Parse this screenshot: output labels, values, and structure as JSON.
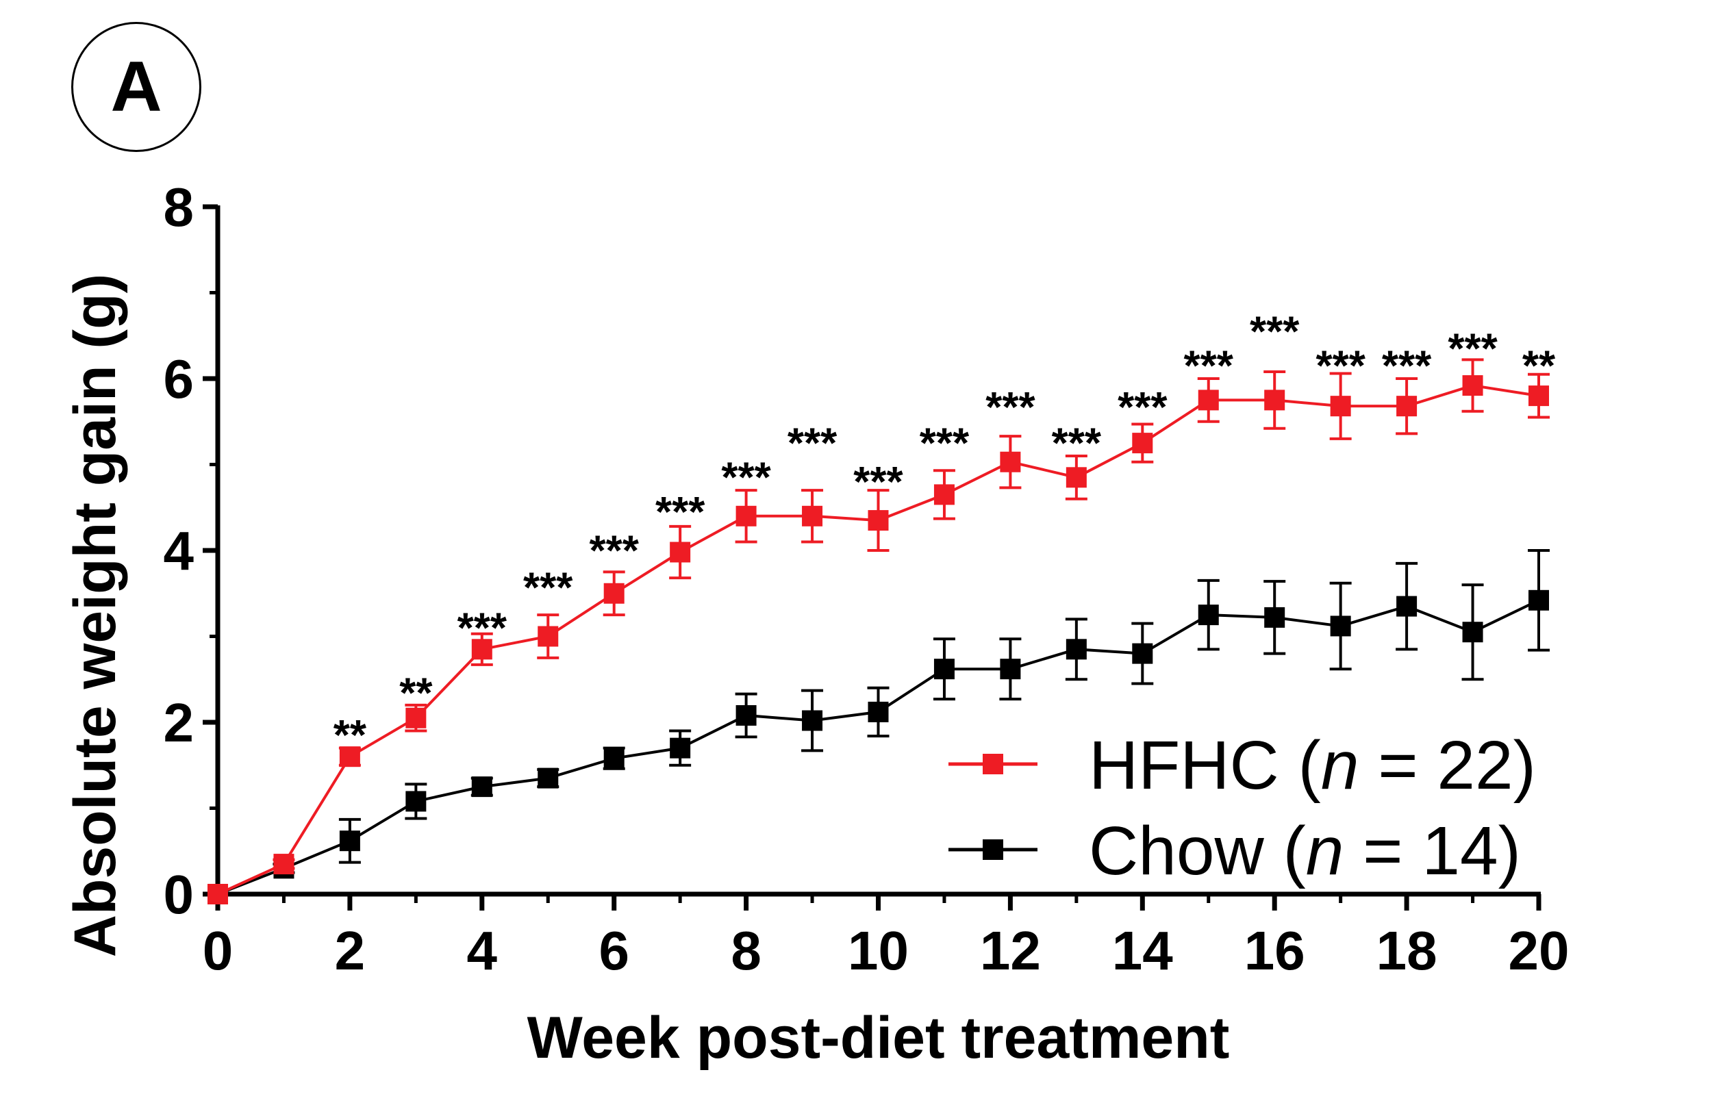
{
  "panel_label": "A",
  "chart_data": {
    "type": "line",
    "xlabel": "Week post-diet treatment",
    "ylabel": "Absolute weight gain (g)",
    "xlim": [
      0,
      20
    ],
    "ylim": [
      0,
      8
    ],
    "xticks": [
      0,
      2,
      4,
      6,
      8,
      10,
      12,
      14,
      16,
      18,
      20
    ],
    "yticks": [
      0,
      2,
      4,
      6,
      8
    ],
    "x": [
      0,
      1,
      2,
      3,
      4,
      5,
      6,
      7,
      8,
      9,
      10,
      11,
      12,
      13,
      14,
      15,
      16,
      17,
      18,
      19,
      20
    ],
    "series": [
      {
        "name": "HFHC",
        "legend_label": "HFHC (",
        "legend_n": "n",
        "legend_tail": " = 22)",
        "color": "#ee1c24",
        "values": [
          0,
          0.35,
          1.6,
          2.05,
          2.85,
          3.0,
          3.5,
          3.98,
          4.4,
          4.4,
          4.35,
          4.65,
          5.03,
          4.85,
          5.25,
          5.75,
          5.75,
          5.68,
          5.68,
          5.92,
          5.8
        ],
        "errors": [
          0,
          0.05,
          0.1,
          0.15,
          0.18,
          0.25,
          0.25,
          0.3,
          0.3,
          0.3,
          0.35,
          0.28,
          0.3,
          0.25,
          0.22,
          0.25,
          0.33,
          0.38,
          0.32,
          0.3,
          0.25
        ]
      },
      {
        "name": "Chow",
        "legend_label": "Chow (",
        "legend_n": "n",
        "legend_tail": " = 14)",
        "color": "#000000",
        "values": [
          0,
          0.3,
          0.62,
          1.08,
          1.25,
          1.35,
          1.58,
          1.7,
          2.08,
          2.02,
          2.12,
          2.62,
          2.62,
          2.85,
          2.8,
          3.25,
          3.22,
          3.12,
          3.35,
          3.05,
          3.42
        ],
        "errors": [
          0,
          0.05,
          0.25,
          0.2,
          0.1,
          0.1,
          0.12,
          0.2,
          0.25,
          0.35,
          0.28,
          0.35,
          0.35,
          0.35,
          0.35,
          0.4,
          0.42,
          0.5,
          0.5,
          0.55,
          0.58
        ]
      }
    ],
    "significance": [
      {
        "x": 2,
        "label": "**",
        "y": 2.03
      },
      {
        "x": 3,
        "label": "**",
        "y": 2.52
      },
      {
        "x": 4,
        "label": "***",
        "y": 3.28
      },
      {
        "x": 5,
        "label": "***",
        "y": 3.75
      },
      {
        "x": 6,
        "label": "***",
        "y": 4.18
      },
      {
        "x": 7,
        "label": "***",
        "y": 4.63
      },
      {
        "x": 8,
        "label": "***",
        "y": 5.03
      },
      {
        "x": 9,
        "label": "***",
        "y": 5.43
      },
      {
        "x": 10,
        "label": "***",
        "y": 4.98
      },
      {
        "x": 11,
        "label": "***",
        "y": 5.43
      },
      {
        "x": 12,
        "label": "***",
        "y": 5.85
      },
      {
        "x": 13,
        "label": "***",
        "y": 5.43
      },
      {
        "x": 14,
        "label": "***",
        "y": 5.85
      },
      {
        "x": 15,
        "label": "***",
        "y": 6.33
      },
      {
        "x": 16,
        "label": "***",
        "y": 6.73
      },
      {
        "x": 17,
        "label": "***",
        "y": 6.33
      },
      {
        "x": 18,
        "label": "***",
        "y": 6.33
      },
      {
        "x": 19,
        "label": "***",
        "y": 6.53
      },
      {
        "x": 20,
        "label": "**",
        "y": 6.33
      }
    ],
    "legend_position": "bottom-right"
  }
}
